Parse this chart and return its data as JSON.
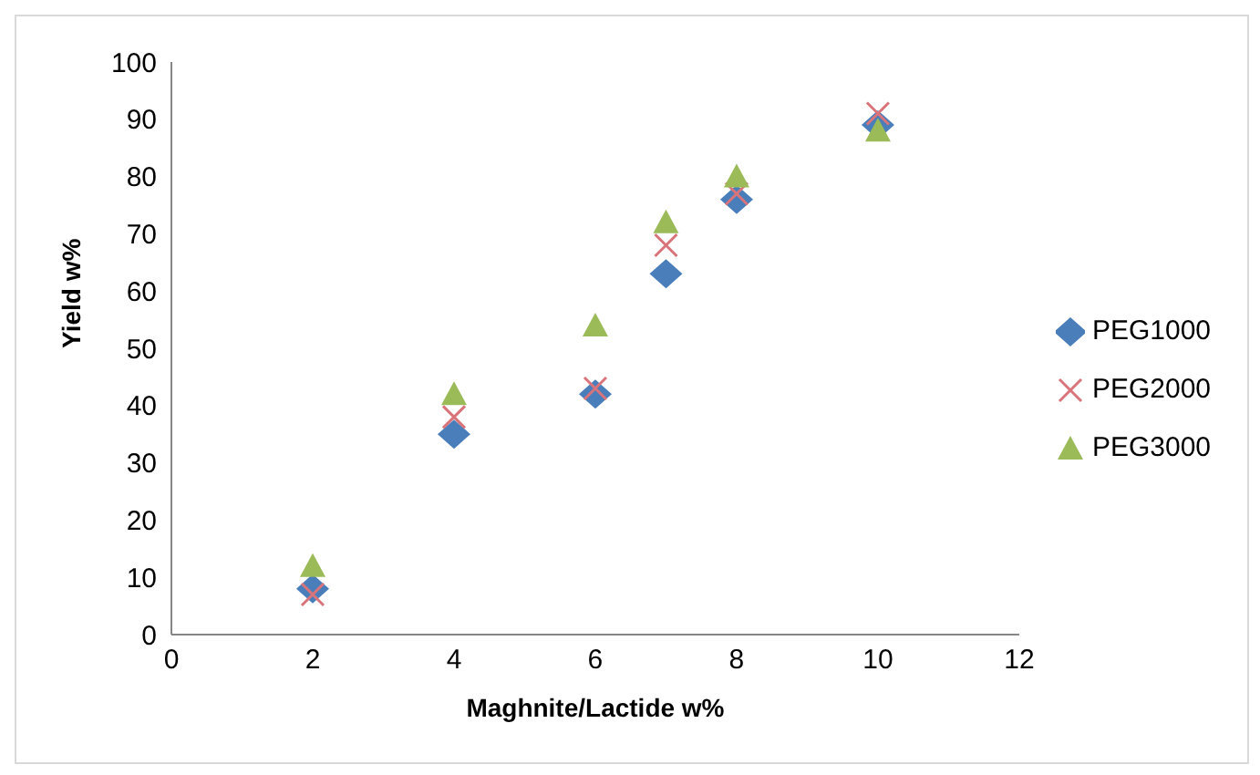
{
  "chart_data": {
    "type": "scatter",
    "xlabel": "Maghnite/Lactide w%",
    "ylabel": "Yield w%",
    "x": [
      2,
      4,
      6,
      7,
      8,
      10
    ],
    "series": [
      {
        "name": "PEG1000",
        "color": "#4a7ebb",
        "marker": "diamond",
        "values": [
          8,
          35,
          42,
          63,
          76,
          89
        ]
      },
      {
        "name": "PEG2000",
        "color": "#d9747a",
        "marker": "cross",
        "values": [
          7,
          38,
          43,
          68,
          77,
          91
        ]
      },
      {
        "name": "PEG3000",
        "color": "#9bbb59",
        "marker": "triangle",
        "values": [
          12,
          42,
          54,
          72,
          80,
          88
        ]
      }
    ],
    "xlim": [
      0,
      12
    ],
    "xticks": [
      0,
      2,
      4,
      6,
      8,
      10,
      12
    ],
    "ylim": [
      0,
      100
    ],
    "yticks": [
      0,
      10,
      20,
      30,
      40,
      50,
      60,
      70,
      80,
      90,
      100
    ],
    "grid": false,
    "legend": "right"
  }
}
